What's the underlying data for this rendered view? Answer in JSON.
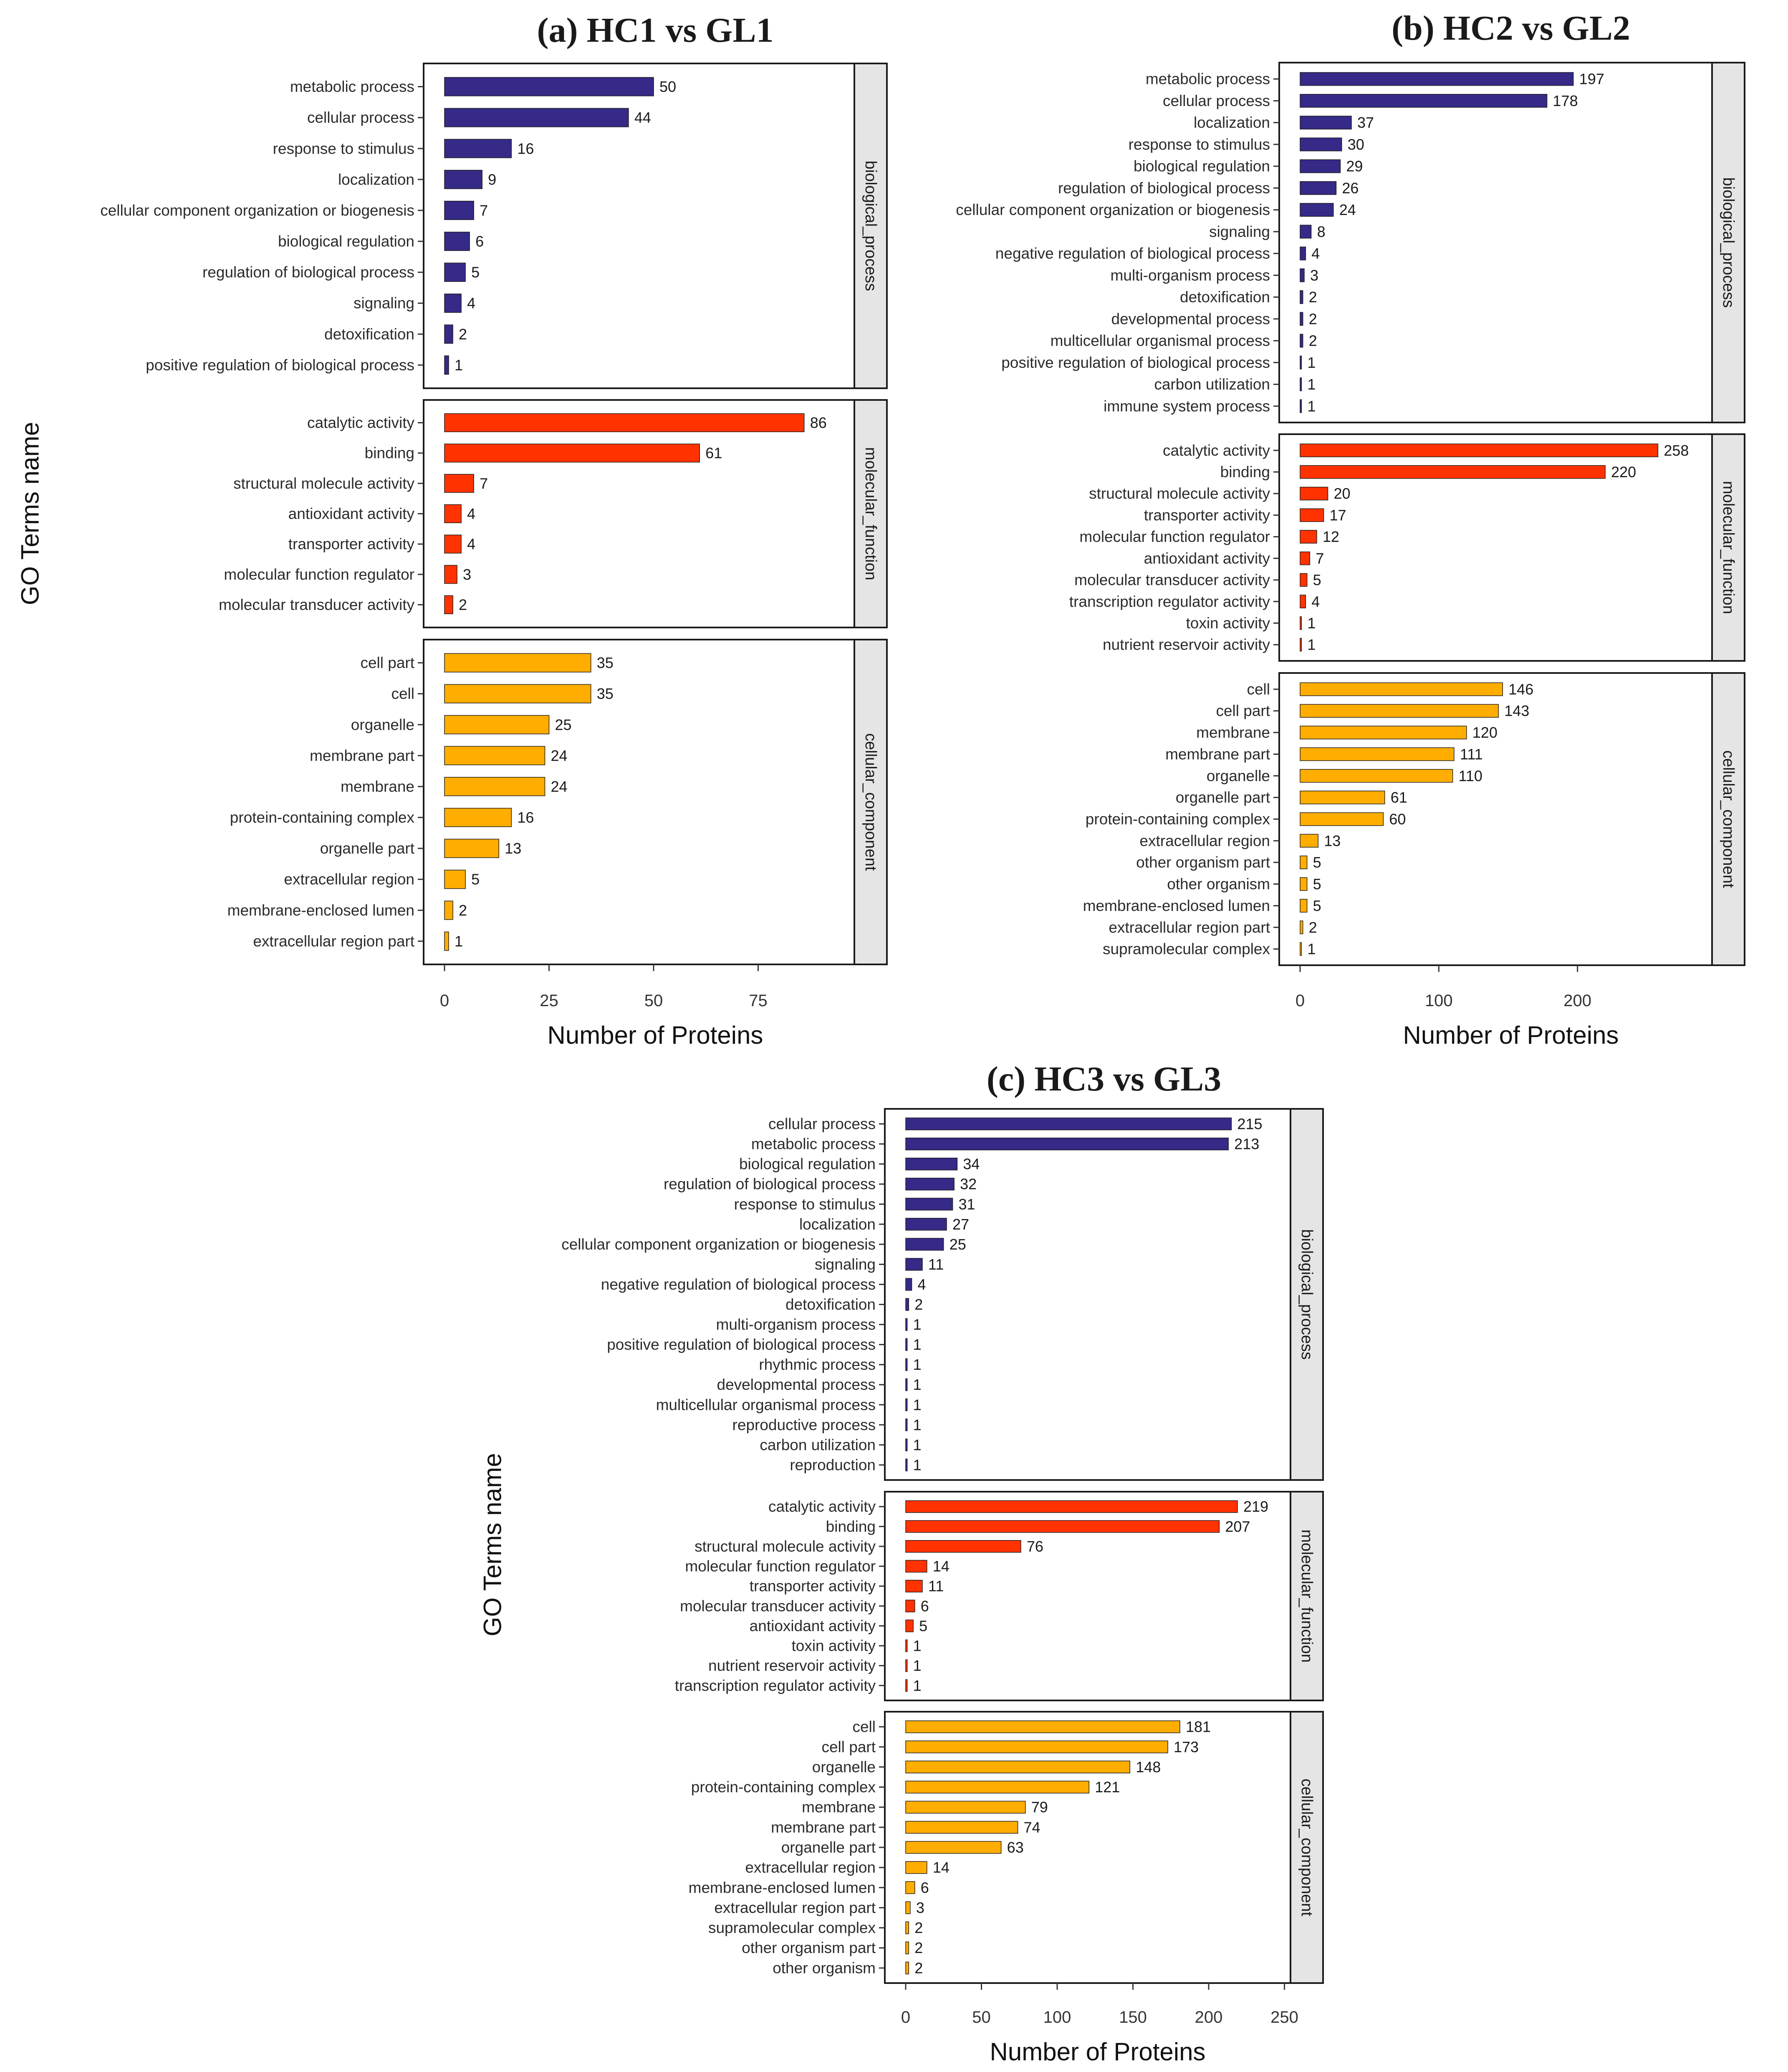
{
  "colors": {
    "biological_process": "#352a87",
    "molecular_function": "#ff3200",
    "cellular_component": "#ffad00",
    "strip_bg": "#e5e5e5"
  },
  "chart_data": [
    {
      "id": "a",
      "type": "bar",
      "orientation": "horizontal",
      "title": "(a) HC1 vs GL1",
      "xlabel": "Number of Proteins",
      "ylabel": "GO Terms name",
      "xlim": [
        0,
        98
      ],
      "xticks": [
        0,
        25,
        50,
        75
      ],
      "facets": [
        {
          "name": "biological_process",
          "categories": [
            "metabolic process",
            "cellular process",
            "response to stimulus",
            "localization",
            "cellular component organization or biogenesis",
            "biological regulation",
            "regulation of biological process",
            "signaling",
            "detoxification",
            "positive regulation of biological process"
          ],
          "values": [
            50,
            44,
            16,
            9,
            7,
            6,
            5,
            4,
            2,
            1
          ]
        },
        {
          "name": "molecular_function",
          "categories": [
            "catalytic activity",
            "binding",
            "structural molecule activity",
            "antioxidant activity",
            "transporter activity",
            "molecular function regulator",
            "molecular transducer activity"
          ],
          "values": [
            86,
            61,
            7,
            4,
            4,
            3,
            2
          ]
        },
        {
          "name": "cellular_component",
          "categories": [
            "cell part",
            "cell",
            "organelle",
            "membrane part",
            "membrane",
            "protein-containing complex",
            "organelle part",
            "extracellular region",
            "membrane-enclosed lumen",
            "extracellular region part"
          ],
          "values": [
            35,
            35,
            25,
            24,
            24,
            16,
            13,
            5,
            2,
            1
          ]
        }
      ]
    },
    {
      "id": "b",
      "type": "bar",
      "orientation": "horizontal",
      "title": "(b) HC2 vs GL2",
      "xlabel": "Number of Proteins",
      "ylabel": "",
      "xlim": [
        0,
        297
      ],
      "xticks": [
        0,
        100,
        200
      ],
      "facets": [
        {
          "name": "biological_process",
          "categories": [
            "metabolic process",
            "cellular process",
            "localization",
            "response to stimulus",
            "biological regulation",
            "regulation of biological process",
            "cellular component organization or biogenesis",
            "signaling",
            "negative regulation of biological process",
            "multi-organism process",
            "detoxification",
            "developmental process",
            "multicellular organismal process",
            "positive regulation of biological process",
            "carbon utilization",
            "immune system process"
          ],
          "values": [
            197,
            178,
            37,
            30,
            29,
            26,
            24,
            8,
            4,
            3,
            2,
            2,
            2,
            1,
            1,
            1
          ]
        },
        {
          "name": "molecular_function",
          "categories": [
            "catalytic activity",
            "binding",
            "structural molecule activity",
            "transporter activity",
            "molecular function regulator",
            "antioxidant activity",
            "molecular transducer activity",
            "transcription regulator activity",
            "toxin activity",
            "nutrient reservoir activity"
          ],
          "values": [
            258,
            220,
            20,
            17,
            12,
            7,
            5,
            4,
            1,
            1
          ]
        },
        {
          "name": "cellular_component",
          "categories": [
            "cell",
            "cell part",
            "membrane",
            "membrane part",
            "organelle",
            "organelle part",
            "protein-containing complex",
            "extracellular region",
            "other organism part",
            "other organism",
            "membrane-enclosed lumen",
            "extracellular region part",
            "supramolecular complex"
          ],
          "values": [
            146,
            143,
            120,
            111,
            110,
            61,
            60,
            13,
            5,
            5,
            5,
            2,
            1
          ]
        }
      ]
    },
    {
      "id": "c",
      "type": "bar",
      "orientation": "horizontal",
      "title": "(c) HC3 vs GL3",
      "xlabel": "Number of Proteins",
      "ylabel": "GO Terms name",
      "xlim": [
        0,
        254
      ],
      "xticks": [
        0,
        50,
        100,
        150,
        200,
        250
      ],
      "facets": [
        {
          "name": "biological_process",
          "categories": [
            "cellular process",
            "metabolic process",
            "biological regulation",
            "regulation of biological process",
            "response to stimulus",
            "localization",
            "cellular component organization or biogenesis",
            "signaling",
            "negative regulation of biological process",
            "detoxification",
            "multi-organism process",
            "positive regulation of biological process",
            "rhythmic process",
            "developmental process",
            "multicellular organismal process",
            "reproductive process",
            "carbon utilization",
            "reproduction"
          ],
          "values": [
            215,
            213,
            34,
            32,
            31,
            27,
            25,
            11,
            4,
            2,
            1,
            1,
            1,
            1,
            1,
            1,
            1,
            1
          ]
        },
        {
          "name": "molecular_function",
          "categories": [
            "catalytic activity",
            "binding",
            "structural molecule activity",
            "molecular function regulator",
            "transporter activity",
            "molecular transducer activity",
            "antioxidant activity",
            "toxin activity",
            "nutrient reservoir activity",
            "transcription regulator activity"
          ],
          "values": [
            219,
            207,
            76,
            14,
            11,
            6,
            5,
            1,
            1,
            1
          ]
        },
        {
          "name": "cellular_component",
          "categories": [
            "cell",
            "cell part",
            "organelle",
            "protein-containing complex",
            "membrane",
            "membrane part",
            "organelle part",
            "extracellular region",
            "membrane-enclosed lumen",
            "extracellular region part",
            "supramolecular complex",
            "other organism part",
            "other organism"
          ],
          "values": [
            181,
            173,
            148,
            121,
            79,
            74,
            63,
            14,
            6,
            3,
            2,
            2,
            2
          ]
        }
      ]
    }
  ]
}
